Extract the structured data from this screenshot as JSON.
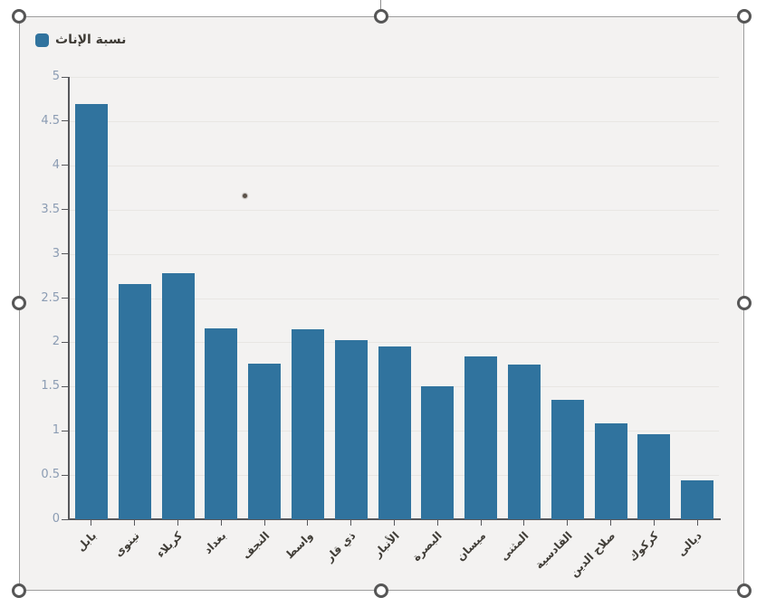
{
  "chart_data": {
    "type": "bar",
    "title": "",
    "legend": {
      "label": "نسبة الإناث",
      "position": "top-left"
    },
    "categories": [
      "بابل",
      "نينوى",
      "كربلاء",
      "بغداد",
      "النجف",
      "واسط",
      "ذي قار",
      "الأنبار",
      "البصرة",
      "ميسان",
      "المثنى",
      "القادسية",
      "صلاح الدين",
      "كركوك",
      "ديالى"
    ],
    "values": [
      4.69,
      2.66,
      2.78,
      2.16,
      1.76,
      2.15,
      2.02,
      1.95,
      1.5,
      1.84,
      1.75,
      1.35,
      1.08,
      0.96,
      0.44
    ],
    "ylim": [
      0,
      5
    ],
    "yticks": [
      0,
      0.5,
      1,
      1.5,
      2,
      2.5,
      3,
      3.5,
      4,
      4.5,
      5
    ],
    "ytick_labels": [
      "0",
      "0.5",
      "1",
      "1.5",
      "2",
      "2.5",
      "3",
      "3.5",
      "4",
      "4.5",
      "5"
    ],
    "xlabel": "",
    "ylabel": "",
    "grid": true,
    "bar_color": "#30739e"
  },
  "selection": {
    "handle_names": [
      "top-left",
      "top-center",
      "top-right",
      "middle-left",
      "middle-right",
      "bottom-left",
      "bottom-center",
      "bottom-right"
    ]
  },
  "colors": {
    "chart_background": "#f3f2f1",
    "bar": "#30739e",
    "axis": "#57585c",
    "y_label": "#8b9cb3",
    "x_label": "#403d37",
    "selection_border": "#9d9d9d"
  }
}
